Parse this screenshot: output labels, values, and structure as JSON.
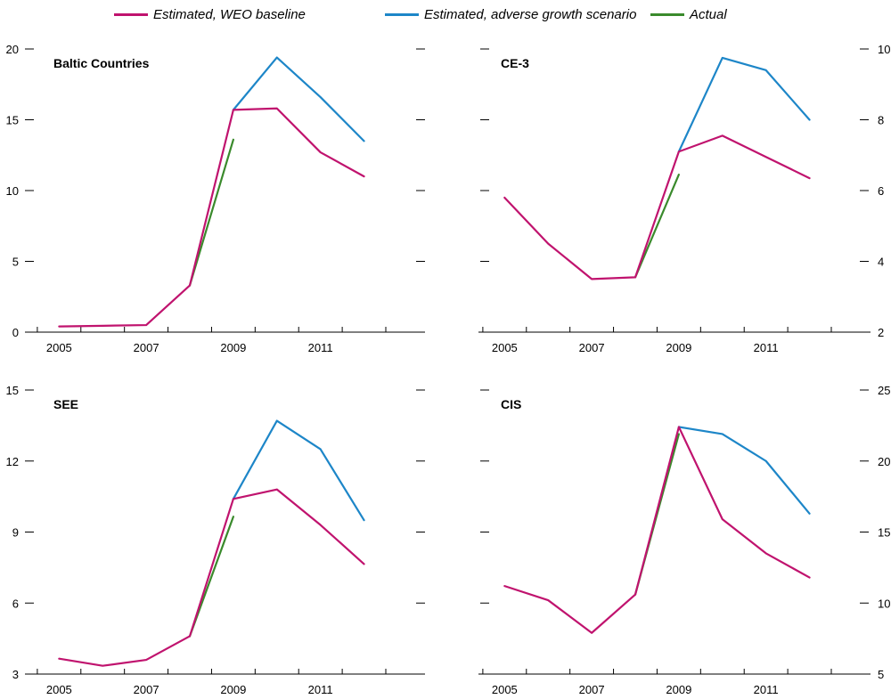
{
  "colors": {
    "baseline": "#c0136e",
    "adverse": "#1d86c8",
    "actual": "#3a8a2c",
    "axis": "#000000"
  },
  "legend": {
    "baseline": "Estimated, WEO baseline",
    "adverse": "Estimated, adverse growth scenario",
    "actual": "Actual"
  },
  "chart_data": [
    {
      "type": "line",
      "title": "Baltic Countries",
      "y_axis_side": "left",
      "ylim": [
        0,
        20
      ],
      "yticks": [
        0,
        5,
        10,
        15,
        20
      ],
      "x_tick_labels": [
        "2005",
        "2007",
        "2009",
        "2011"
      ],
      "x": [
        2005,
        2006,
        2007,
        2008,
        2009,
        2010,
        2011,
        2012
      ],
      "series": [
        {
          "key": "baseline",
          "x": [
            2005,
            2006,
            2007,
            2008,
            2009,
            2010,
            2011,
            2012
          ],
          "values": [
            0.4,
            0.45,
            0.5,
            3.3,
            15.7,
            15.8,
            12.7,
            11.0
          ]
        },
        {
          "key": "adverse",
          "x": [
            2009,
            2010,
            2011,
            2012
          ],
          "values": [
            15.7,
            19.4,
            16.6,
            13.5
          ]
        },
        {
          "key": "actual",
          "x": [
            2008,
            2009
          ],
          "values": [
            3.3,
            13.6
          ]
        }
      ]
    },
    {
      "type": "line",
      "title": "CE-3",
      "y_axis_side": "right",
      "ylim": [
        2,
        10
      ],
      "yticks": [
        2,
        4,
        6,
        8,
        10
      ],
      "x_tick_labels": [
        "2005",
        "2007",
        "2009",
        "2011"
      ],
      "x": [
        2005,
        2006,
        2007,
        2008,
        2009,
        2010,
        2011,
        2012
      ],
      "series": [
        {
          "key": "baseline",
          "x": [
            2005,
            2006,
            2007,
            2008,
            2009,
            2010,
            2011,
            2012
          ],
          "values": [
            5.8,
            4.5,
            3.5,
            3.55,
            7.1,
            7.55,
            6.95,
            6.35
          ]
        },
        {
          "key": "adverse",
          "x": [
            2009,
            2010,
            2011,
            2012
          ],
          "values": [
            7.1,
            9.75,
            9.4,
            8.0
          ]
        },
        {
          "key": "actual",
          "x": [
            2008,
            2009
          ],
          "values": [
            3.55,
            6.45
          ]
        }
      ]
    },
    {
      "type": "line",
      "title": "SEE",
      "y_axis_side": "left",
      "ylim": [
        3,
        15
      ],
      "yticks": [
        3,
        6,
        9,
        12,
        15
      ],
      "x_tick_labels": [
        "2005",
        "2007",
        "2009",
        "2011"
      ],
      "x": [
        2005,
        2006,
        2007,
        2008,
        2009,
        2010,
        2011,
        2012
      ],
      "series": [
        {
          "key": "baseline",
          "x": [
            2005,
            2006,
            2007,
            2008,
            2009,
            2010,
            2011,
            2012
          ],
          "values": [
            3.65,
            3.35,
            3.6,
            4.6,
            10.4,
            10.8,
            9.3,
            7.65
          ]
        },
        {
          "key": "adverse",
          "x": [
            2009,
            2010,
            2011,
            2012
          ],
          "values": [
            10.4,
            13.7,
            12.5,
            9.5
          ]
        },
        {
          "key": "actual",
          "x": [
            2008,
            2009
          ],
          "values": [
            4.6,
            9.65
          ]
        }
      ]
    },
    {
      "type": "line",
      "title": "CIS",
      "y_axis_side": "right",
      "ylim": [
        5,
        25
      ],
      "yticks": [
        5,
        10,
        15,
        20,
        25
      ],
      "x_tick_labels": [
        "2005",
        "2007",
        "2009",
        "2011"
      ],
      "x": [
        2005,
        2006,
        2007,
        2008,
        2009,
        2010,
        2011,
        2012
      ],
      "series": [
        {
          "key": "baseline",
          "x": [
            2005,
            2006,
            2007,
            2008,
            2009,
            2010,
            2011,
            2012
          ],
          "values": [
            11.2,
            10.2,
            7.9,
            10.6,
            22.4,
            15.9,
            13.5,
            11.8
          ]
        },
        {
          "key": "adverse",
          "x": [
            2009,
            2010,
            2011,
            2012
          ],
          "values": [
            22.4,
            21.9,
            20.0,
            16.3
          ]
        },
        {
          "key": "actual",
          "x": [
            2008,
            2009
          ],
          "values": [
            10.6,
            21.9
          ]
        }
      ]
    }
  ]
}
